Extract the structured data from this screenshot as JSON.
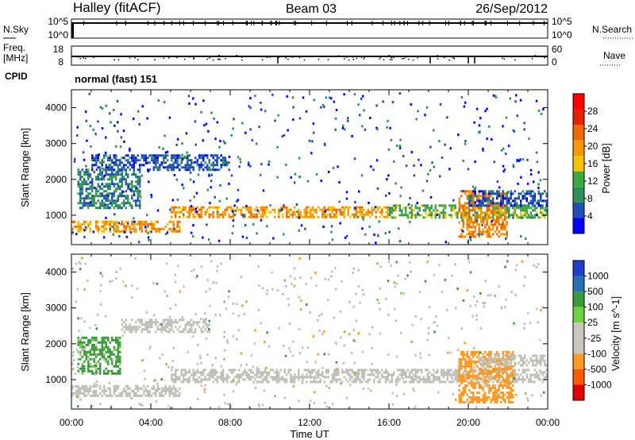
{
  "header": {
    "title": "Halley (fitACF)",
    "beam": "Beam 03",
    "date": "26/Sep/2012"
  },
  "strips": {
    "nsky_label": "N.Sky",
    "nsky_ticks": [
      "10^5",
      "10^0"
    ],
    "nsearch_label": "N.Search",
    "nsearch_ticks": [
      "10^5",
      "10^0"
    ],
    "freq_label_line1": "Freq.",
    "freq_label_line2": "[MHz]",
    "freq_ticks": [
      "18",
      "8"
    ],
    "nave_label": "Nave",
    "nave_ticks": [
      "60",
      "0"
    ],
    "cpid_label": "CPID",
    "cpid_text": "normal (fast) 151"
  },
  "colors": {
    "power": [
      "#0000ff",
      "#1f4fb4",
      "#2f8f5a",
      "#3fa83f",
      "#f5c400",
      "#f59a00",
      "#f06a00",
      "#e62000",
      "#ff0000"
    ],
    "velocity": [
      "#e00000",
      "#ff5a00",
      "#ff9a20",
      "#c8c8bc",
      "#c8c8bc",
      "#6fd040",
      "#3a9a3a",
      "#2a70b0",
      "#1e40c8"
    ],
    "ground_scatter": "#c0c0b8"
  },
  "chart_data": [
    {
      "type": "heatmap",
      "name": "power",
      "ylabel": "Slant Range [km]",
      "xlabel": "",
      "xlim": [
        "00:00",
        "00:00"
      ],
      "x_ticks": [
        "00:00",
        "04:00",
        "08:00",
        "12:00",
        "16:00",
        "20:00",
        "00:00"
      ],
      "ylim": [
        180,
        4500
      ],
      "y_ticks": [
        1000,
        2000,
        3000,
        4000
      ],
      "colorbar": {
        "label": "Power [dB]",
        "range": [
          0,
          32
        ],
        "ticks": [
          4,
          8,
          12,
          16,
          20,
          24,
          28
        ]
      },
      "bands": [
        {
          "t": [
            0,
            5.5
          ],
          "range_km": [
            550,
            850
          ],
          "power_db": 22
        },
        {
          "t": [
            0.3,
            3.5
          ],
          "range_km": [
            1200,
            2300
          ],
          "power_db": 9
        },
        {
          "t": [
            1,
            8
          ],
          "range_km": [
            2300,
            2700
          ],
          "power_db": 6
        },
        {
          "t": [
            5,
            16
          ],
          "range_km": [
            950,
            1250
          ],
          "power_db": 22
        },
        {
          "t": [
            16,
            24
          ],
          "range_km": [
            950,
            1300
          ],
          "power_db": 14
        },
        {
          "t": [
            19.5,
            22
          ],
          "range_km": [
            400,
            1700
          ],
          "power_db": 24
        },
        {
          "t": [
            20,
            24
          ],
          "range_km": [
            1300,
            1700
          ],
          "power_db": 6
        }
      ]
    },
    {
      "type": "heatmap",
      "name": "velocity",
      "ylabel": "Slant Range [km]",
      "xlabel": "Time UT",
      "xlim": [
        "00:00",
        "00:00"
      ],
      "x_ticks": [
        "00:00",
        "04:00",
        "08:00",
        "12:00",
        "16:00",
        "20:00",
        "00:00"
      ],
      "ylim": [
        180,
        4500
      ],
      "y_ticks": [
        1000,
        2000,
        3000,
        4000
      ],
      "colorbar": {
        "label": "Velocity [m s^-1]",
        "tick_labels": [
          "-1000",
          "-500",
          "-100",
          "-25",
          "25",
          "100",
          "500",
          "1000"
        ]
      },
      "bands": [
        {
          "t": [
            0,
            5.5
          ],
          "range_km": [
            550,
            850
          ],
          "velocity": 0,
          "ground": true
        },
        {
          "t": [
            5,
            24
          ],
          "range_km": [
            950,
            1300
          ],
          "velocity": 0,
          "ground": true
        },
        {
          "t": [
            2.5,
            7
          ],
          "range_km": [
            2350,
            2700
          ],
          "velocity": 0,
          "ground": true
        },
        {
          "t": [
            0.3,
            2.5
          ],
          "range_km": [
            1200,
            2200
          ],
          "velocity": 150
        },
        {
          "t": [
            19.5,
            22.3
          ],
          "range_km": [
            400,
            1800
          ],
          "velocity": -300
        },
        {
          "t": [
            20.5,
            24
          ],
          "range_km": [
            1400,
            1700
          ],
          "velocity": 0,
          "ground": true
        }
      ]
    }
  ]
}
